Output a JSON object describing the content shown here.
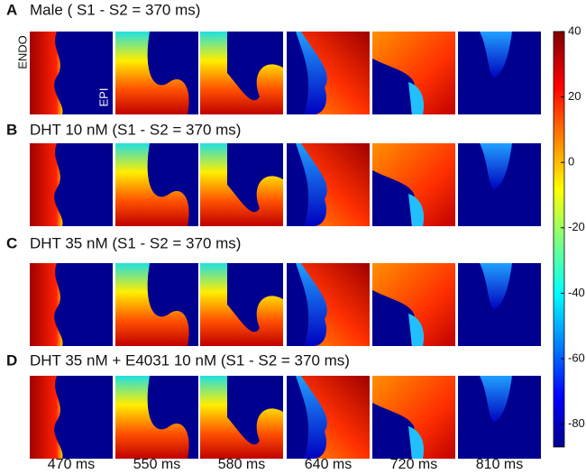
{
  "panels": [
    {
      "letter": "A",
      "title": "Male ( S1 - S2 = 370 ms)"
    },
    {
      "letter": "B",
      "title": "DHT 10 nM (S1 - S2 = 370 ms)"
    },
    {
      "letter": "C",
      "title": "DHT 35 nM (S1 - S2 = 370 ms)"
    },
    {
      "letter": "D",
      "title": "DHT 35 nM + E4031 10 nM (S1 - S2 = 370 ms)"
    }
  ],
  "endo_label": "ENDO",
  "epi_label": "EPI",
  "times": [
    "470 ms",
    "550 ms",
    "580 ms",
    "640 ms",
    "720 ms",
    "810 ms"
  ],
  "colorbar": {
    "lim": [
      -87,
      40
    ],
    "ticks": [
      40,
      20,
      0,
      -20,
      -40,
      -60,
      -80
    ]
  }
}
